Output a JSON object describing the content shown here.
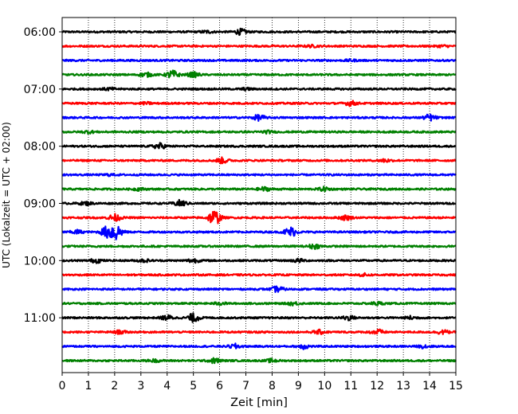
{
  "chart_data": {
    "type": "line",
    "title": "",
    "xlabel": "Zeit  [min]",
    "ylabel": "UTC (Lokalzeit = UTC + 02:00)",
    "xlim": [
      0,
      15
    ],
    "x_ticks": [
      0,
      1,
      2,
      3,
      4,
      5,
      6,
      7,
      8,
      9,
      10,
      11,
      12,
      13,
      14,
      15
    ],
    "x_grid": true,
    "traces_per_hour": 4,
    "trace_interval_min": 15,
    "y_tick_labels": [
      "06:00",
      "07:00",
      "08:00",
      "09:00",
      "10:00",
      "11:00"
    ],
    "trace_colors": [
      "#000000",
      "#ff0000",
      "#0000ff",
      "#008000"
    ],
    "series": [
      {
        "start": "06:00",
        "color": "#000000",
        "events": [
          {
            "t": 6.8,
            "amp": 0.35
          },
          {
            "t": 5.5,
            "amp": 0.15
          }
        ]
      },
      {
        "start": "06:15",
        "color": "#ff0000",
        "events": [
          {
            "t": 9.5,
            "amp": 0.12
          },
          {
            "t": 14.5,
            "amp": 0.12
          }
        ]
      },
      {
        "start": "06:30",
        "color": "#0000ff",
        "events": [
          {
            "t": 11.0,
            "amp": 0.1
          }
        ]
      },
      {
        "start": "06:45",
        "color": "#008000",
        "events": [
          {
            "t": 4.2,
            "amp": 0.55
          },
          {
            "t": 3.2,
            "amp": 0.25
          },
          {
            "t": 5.0,
            "amp": 0.3
          }
        ]
      },
      {
        "start": "07:00",
        "color": "#000000",
        "events": [
          {
            "t": 1.8,
            "amp": 0.15
          },
          {
            "t": 7.0,
            "amp": 0.12
          }
        ]
      },
      {
        "start": "07:15",
        "color": "#ff0000",
        "events": [
          {
            "t": 11.0,
            "amp": 0.3
          },
          {
            "t": 3.2,
            "amp": 0.12
          }
        ]
      },
      {
        "start": "07:30",
        "color": "#0000ff",
        "events": [
          {
            "t": 7.5,
            "amp": 0.35
          },
          {
            "t": 14.0,
            "amp": 0.4
          }
        ]
      },
      {
        "start": "07:45",
        "color": "#008000",
        "events": [
          {
            "t": 1.0,
            "amp": 0.15
          },
          {
            "t": 7.8,
            "amp": 0.15
          }
        ]
      },
      {
        "start": "08:00",
        "color": "#000000",
        "events": [
          {
            "t": 3.7,
            "amp": 0.4
          }
        ]
      },
      {
        "start": "08:15",
        "color": "#ff0000",
        "events": [
          {
            "t": 6.1,
            "amp": 0.35
          },
          {
            "t": 12.3,
            "amp": 0.2
          }
        ]
      },
      {
        "start": "08:30",
        "color": "#0000ff",
        "events": [
          {
            "t": 1.8,
            "amp": 0.1
          }
        ]
      },
      {
        "start": "08:45",
        "color": "#008000",
        "events": [
          {
            "t": 7.7,
            "amp": 0.25
          },
          {
            "t": 10.0,
            "amp": 0.25
          },
          {
            "t": 2.9,
            "amp": 0.15
          }
        ]
      },
      {
        "start": "09:00",
        "color": "#000000",
        "events": [
          {
            "t": 4.5,
            "amp": 0.4
          },
          {
            "t": 0.9,
            "amp": 0.2
          }
        ]
      },
      {
        "start": "09:15",
        "color": "#ff0000",
        "events": [
          {
            "t": 5.8,
            "amp": 1.0
          },
          {
            "t": 10.8,
            "amp": 0.3
          },
          {
            "t": 2.0,
            "amp": 0.45
          }
        ]
      },
      {
        "start": "09:30",
        "color": "#0000ff",
        "events": [
          {
            "t": 8.7,
            "amp": 0.65
          },
          {
            "t": 1.7,
            "amp": 0.7
          },
          {
            "t": 2.05,
            "amp": 1.1
          },
          {
            "t": 0.55,
            "amp": 0.25
          }
        ]
      },
      {
        "start": "09:45",
        "color": "#008000",
        "events": [
          {
            "t": 9.6,
            "amp": 0.3
          }
        ]
      },
      {
        "start": "10:00",
        "color": "#000000",
        "events": [
          {
            "t": 1.3,
            "amp": 0.25
          },
          {
            "t": 5.0,
            "amp": 0.25
          },
          {
            "t": 9.0,
            "amp": 0.2
          },
          {
            "t": 3.1,
            "amp": 0.18
          }
        ]
      },
      {
        "start": "10:15",
        "color": "#ff0000",
        "events": [
          {
            "t": 11.5,
            "amp": 0.15
          }
        ]
      },
      {
        "start": "10:30",
        "color": "#0000ff",
        "events": [
          {
            "t": 8.2,
            "amp": 0.35
          }
        ]
      },
      {
        "start": "10:45",
        "color": "#008000",
        "events": [
          {
            "t": 8.8,
            "amp": 0.2
          },
          {
            "t": 12.0,
            "amp": 0.2
          },
          {
            "t": 6.0,
            "amp": 0.15
          }
        ]
      },
      {
        "start": "11:00",
        "color": "#000000",
        "events": [
          {
            "t": 5.0,
            "amp": 0.55
          },
          {
            "t": 4.0,
            "amp": 0.3
          },
          {
            "t": 10.9,
            "amp": 0.3
          },
          {
            "t": 13.3,
            "amp": 0.2
          }
        ]
      },
      {
        "start": "11:15",
        "color": "#ff0000",
        "events": [
          {
            "t": 12.0,
            "amp": 0.35
          },
          {
            "t": 9.8,
            "amp": 0.25
          },
          {
            "t": 2.2,
            "amp": 0.2
          },
          {
            "t": 14.5,
            "amp": 0.25
          }
        ]
      },
      {
        "start": "11:30",
        "color": "#0000ff",
        "events": [
          {
            "t": 6.6,
            "amp": 0.3
          },
          {
            "t": 9.2,
            "amp": 0.3
          },
          {
            "t": 13.8,
            "amp": 0.2
          }
        ]
      },
      {
        "start": "11:45",
        "color": "#008000",
        "events": [
          {
            "t": 5.8,
            "amp": 0.3
          },
          {
            "t": 8.0,
            "amp": 0.2
          },
          {
            "t": 3.5,
            "amp": 0.15
          }
        ]
      }
    ]
  }
}
